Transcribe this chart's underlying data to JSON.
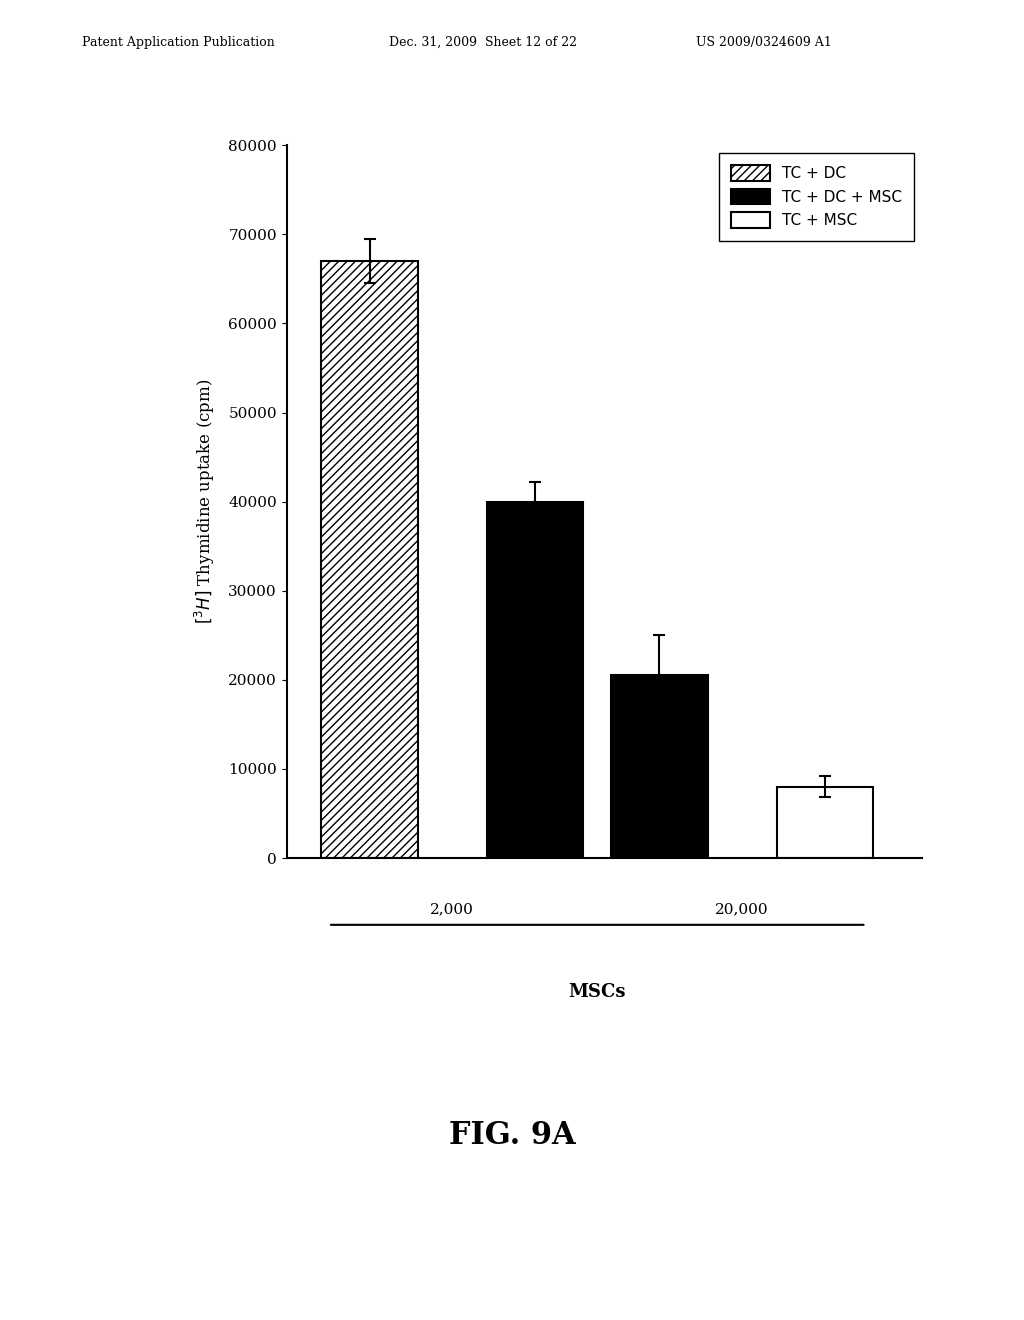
{
  "bar_values": [
    67000,
    40000,
    20500,
    8000
  ],
  "bar_errors": [
    2500,
    2200,
    4500,
    1200
  ],
  "bar_colors": [
    "white",
    "black",
    "black",
    "white"
  ],
  "bar_hatches": [
    "////",
    "",
    "",
    ""
  ],
  "bar_edgecolors": [
    "black",
    "black",
    "black",
    "black"
  ],
  "bar_positions": [
    1.0,
    2.2,
    3.1,
    4.3
  ],
  "bar_width": 0.7,
  "ylabel": "$[^{3}H]$ Thymidine uptake (cpm)",
  "ylim": [
    0,
    80000
  ],
  "yticks": [
    0,
    10000,
    20000,
    30000,
    40000,
    50000,
    60000,
    70000,
    80000
  ],
  "xlabel_groups": [
    "2,000",
    "20,000"
  ],
  "xlabel_main": "MSCs",
  "legend_labels": [
    "TC + DC",
    "TC + DC + MSC",
    "TC + MSC"
  ],
  "legend_hatches": [
    "////",
    "",
    ""
  ],
  "legend_colors": [
    "white",
    "black",
    "white"
  ],
  "legend_edgecolors": [
    "black",
    "black",
    "black"
  ],
  "figure_caption": "FIG. 9A",
  "header_left": "Patent Application Publication",
  "header_mid": "Dec. 31, 2009  Sheet 12 of 22",
  "header_right": "US 2009/0324609 A1",
  "background_color": "#ffffff",
  "axis_linewidth": 1.5,
  "bar_linewidth": 1.5
}
